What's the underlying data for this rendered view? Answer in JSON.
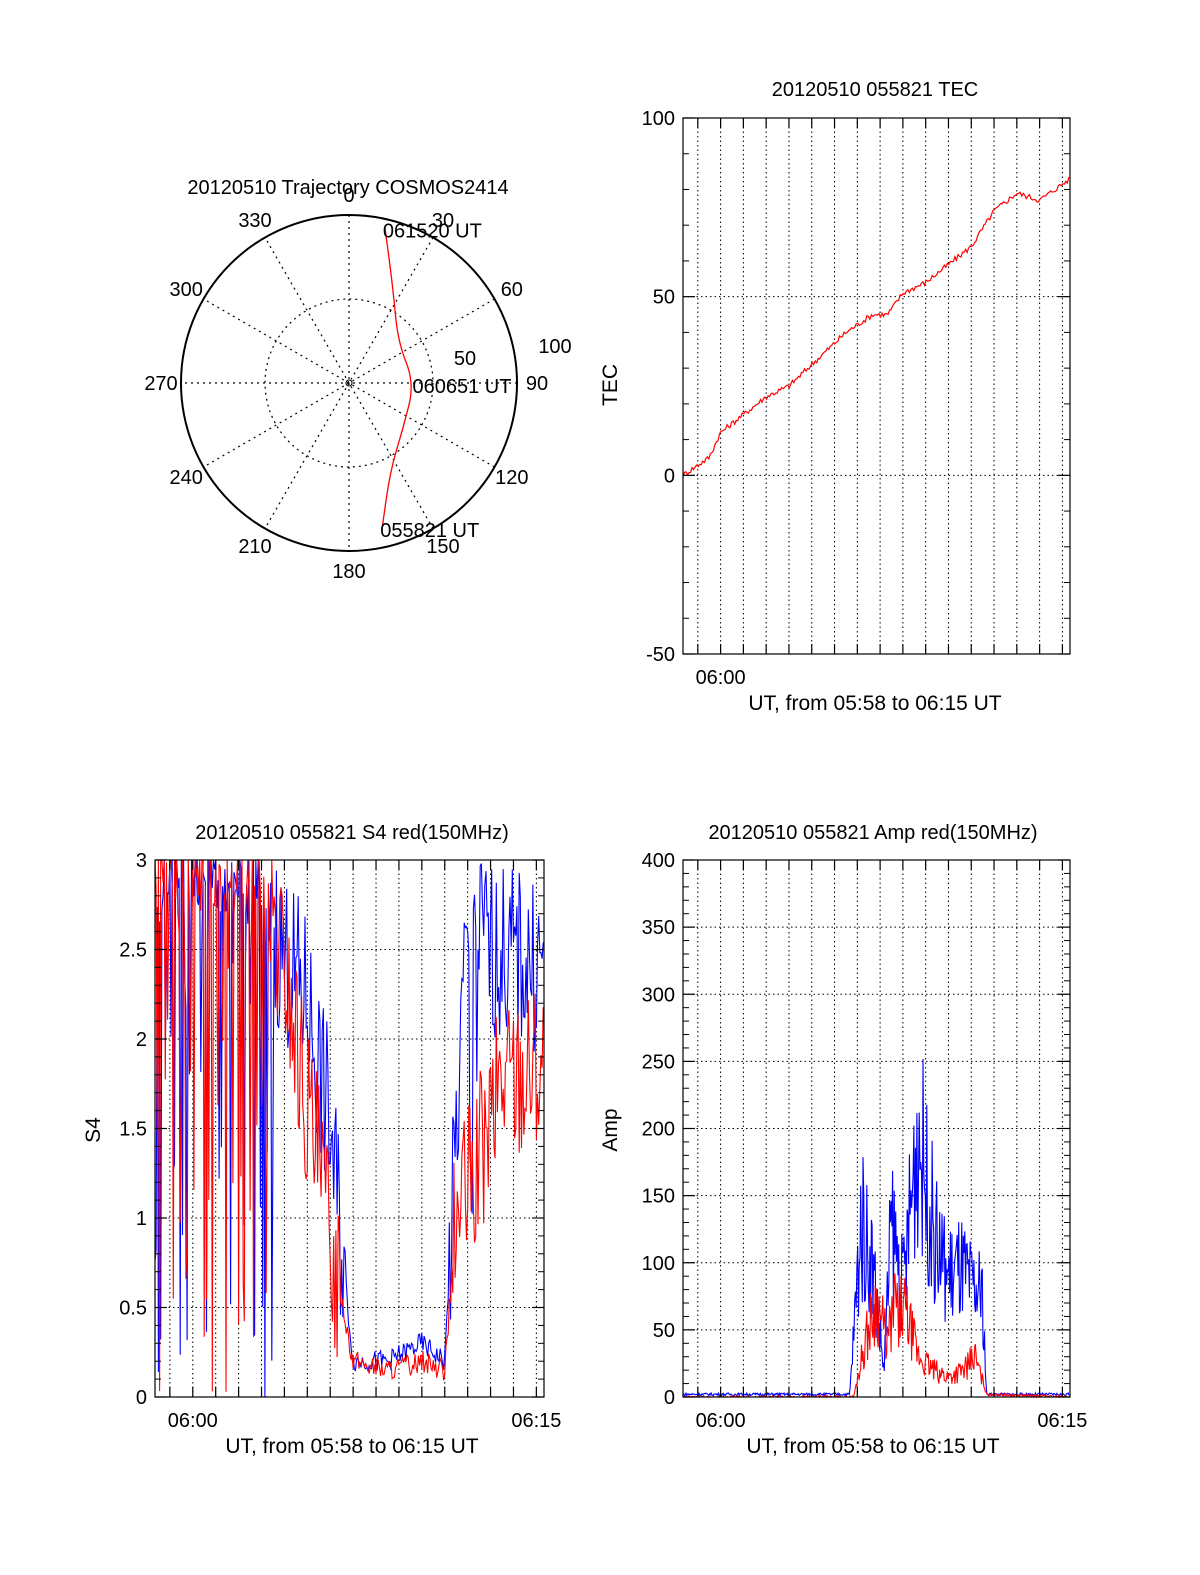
{
  "chart_data": [
    {
      "type": "polar",
      "title": "20120510 Trajectory COSMOS2414",
      "azimuth_labels": [
        "0",
        "30",
        "60",
        "90",
        "120",
        "150",
        "180",
        "210",
        "240",
        "270",
        "300",
        "330"
      ],
      "ring_labels": [
        "50",
        "100"
      ],
      "rlim": [
        0,
        100
      ],
      "grid": true,
      "series": [
        {
          "color": "#ff0000",
          "points": [
            {
              "az": 13,
              "r": 95
            },
            {
              "az": 25,
              "r": 62
            },
            {
              "az": 50,
              "r": 38
            },
            {
              "az": 90,
              "r": 39
            },
            {
              "az": 130,
              "r": 42
            },
            {
              "az": 155,
              "r": 58
            },
            {
              "az": 167,
              "r": 88
            }
          ]
        }
      ],
      "annotations": [
        {
          "text": "061520 UT",
          "az": 13,
          "r": 95
        },
        {
          "text": "060651 UT",
          "az": 90,
          "r": 39
        },
        {
          "text": "055821 UT",
          "az": 167,
          "r": 88
        }
      ]
    },
    {
      "type": "line",
      "title": "20120510 055821 TEC",
      "xlabel": "UT, from 05:58 to 06:15 UT",
      "ylabel": "TEC",
      "xlim": [
        "05:58:21",
        "06:15:20"
      ],
      "ylim": [
        -50,
        100
      ],
      "x_tick_labels": [
        "06:00"
      ],
      "y_tick_labels": [
        "-50",
        "0",
        "50",
        "100"
      ],
      "grid": true,
      "series": [
        {
          "color": "#ff0000",
          "x": [
            "05:58:21",
            "05:59:30",
            "06:00:00",
            "06:01:00",
            "06:02:00",
            "06:03:00",
            "06:04:00",
            "06:05:30",
            "06:06:40",
            "06:07:20",
            "06:08:00",
            "06:09:00",
            "06:10:00",
            "06:11:00",
            "06:12:00",
            "06:13:00",
            "06:14:00",
            "06:15:20"
          ],
          "y": [
            0,
            5,
            12,
            17,
            22,
            25,
            31,
            40,
            45,
            45,
            51,
            54,
            59,
            64,
            74,
            79,
            77,
            83
          ]
        }
      ]
    },
    {
      "type": "line",
      "title": "20120510 055821 S4 red(150MHz)",
      "xlabel": "UT, from 05:58 to 06:15 UT",
      "ylabel": "S4",
      "xlim": [
        "05:58:21",
        "06:15:20"
      ],
      "ylim": [
        0,
        3
      ],
      "x_tick_labels": [
        "06:00",
        "06:15"
      ],
      "y_tick_labels": [
        "0",
        "0.5",
        "1",
        "1.5",
        "2",
        "2.5",
        "3"
      ],
      "grid": true,
      "series": [
        {
          "color": "#0000ff",
          "x": [
            "05:58:21",
            "06:02:00",
            "06:03:30",
            "06:05:00",
            "06:06:00",
            "06:07:00",
            "06:07:30",
            "06:08:30",
            "06:10:00",
            "06:11:00",
            "06:12:00",
            "06:13:00",
            "06:15:20"
          ],
          "y": [
            3,
            3,
            2.6,
            2.2,
            1.5,
            0.2,
            0.2,
            0.2,
            0.3,
            0.2,
            2.7,
            2.5,
            2.4
          ]
        },
        {
          "color": "#ff0000",
          "x": [
            "05:58:21",
            "06:02:00",
            "06:04:00",
            "06:05:00",
            "06:06:00",
            "06:07:00",
            "06:08:30",
            "06:10:00",
            "06:11:00",
            "06:11:30",
            "06:12:30",
            "06:13:30",
            "06:15:20"
          ],
          "y": [
            3,
            3,
            2.4,
            1.6,
            0.9,
            0.2,
            0.15,
            0.2,
            0.15,
            1.0,
            1.3,
            1.8,
            1.9
          ]
        }
      ]
    },
    {
      "type": "line",
      "title": "20120510 055821 Amp red(150MHz)",
      "xlabel": "UT, from 05:58 to 06:15 UT",
      "ylabel": "Amp",
      "xlim": [
        "05:58:21",
        "06:15:20"
      ],
      "ylim": [
        0,
        400
      ],
      "x_tick_labels": [
        "06:00",
        "06:15"
      ],
      "y_tick_labels": [
        "0",
        "50",
        "100",
        "150",
        "200",
        "250",
        "300",
        "350",
        "400"
      ],
      "grid": true,
      "series": [
        {
          "color": "#0000ff",
          "x": [
            "05:58:21",
            "06:05:40",
            "06:06:10",
            "06:06:40",
            "06:07:10",
            "06:07:30",
            "06:08:00",
            "06:08:40",
            "06:09:00",
            "06:09:30",
            "06:10:00",
            "06:10:30",
            "06:11:00",
            "06:11:30",
            "06:11:40",
            "06:15:20"
          ],
          "y": [
            2,
            2,
            130,
            100,
            20,
            130,
            80,
            200,
            160,
            110,
            90,
            95,
            80,
            75,
            2,
            2
          ]
        },
        {
          "color": "#ff0000",
          "x": [
            "05:58:21",
            "06:05:50",
            "06:06:20",
            "06:06:50",
            "06:07:20",
            "06:07:40",
            "06:08:10",
            "06:08:40",
            "06:09:20",
            "06:10:00",
            "06:10:40",
            "06:11:10",
            "06:11:40",
            "06:15:20"
          ],
          "y": [
            0,
            0,
            40,
            70,
            40,
            70,
            60,
            30,
            20,
            15,
            20,
            30,
            2,
            0
          ]
        }
      ]
    }
  ]
}
